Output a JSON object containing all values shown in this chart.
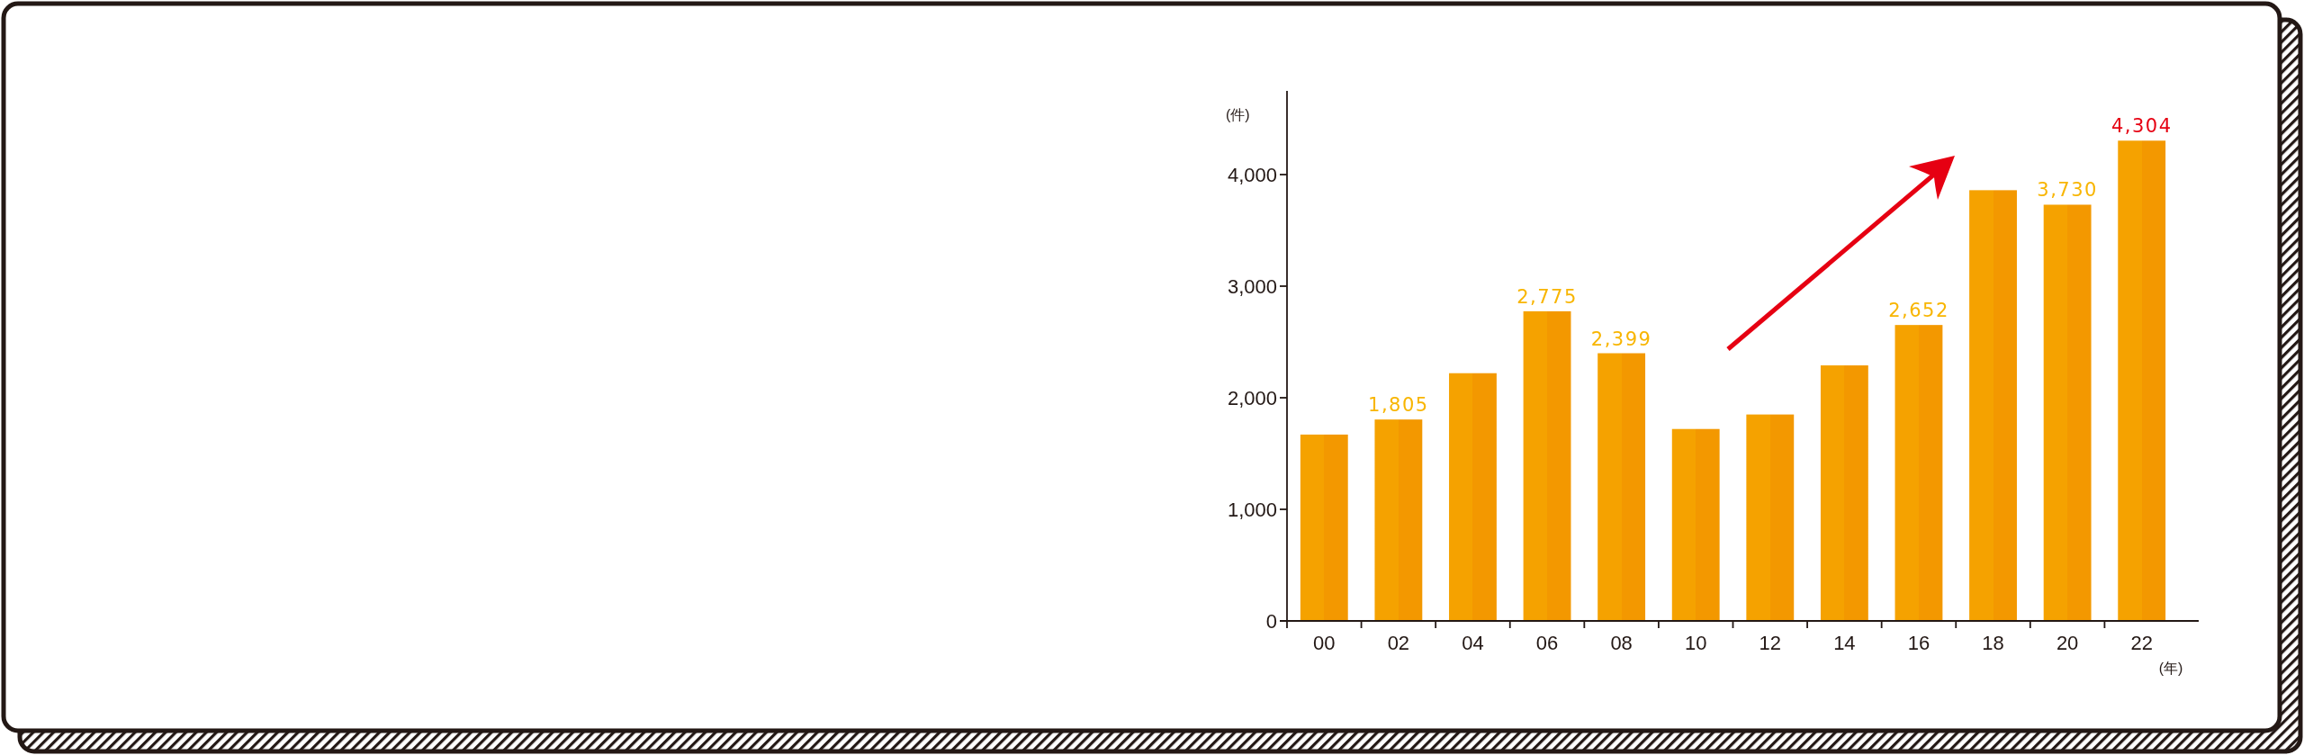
{
  "chart_data": {
    "type": "bar",
    "ylabel": "(件)",
    "xlabel": "(年)",
    "categories": [
      "00",
      "02",
      "04",
      "06",
      "08",
      "10",
      "12",
      "14",
      "16",
      "18",
      "20",
      "22"
    ],
    "values": [
      1670,
      1805,
      2220,
      2775,
      2399,
      1720,
      1850,
      2290,
      2652,
      3860,
      3730,
      4304
    ],
    "value_labels": [
      null,
      "1,805",
      null,
      "2,775",
      "2,399",
      null,
      null,
      null,
      "2,652",
      null,
      "3,730",
      null
    ],
    "annotations": [
      {
        "text": "4,304",
        "x": "22",
        "y": 4304
      }
    ],
    "color": "#f39800",
    "ylim": [
      0,
      4750
    ],
    "yticks": [
      0,
      {
        "value": 1000,
        "label": "1,000"
      },
      {
        "value": 2000,
        "label": "2,000"
      },
      {
        "value": 3000,
        "label": "3,000"
      },
      {
        "value": 4000,
        "label": "4,000"
      }
    ]
  }
}
